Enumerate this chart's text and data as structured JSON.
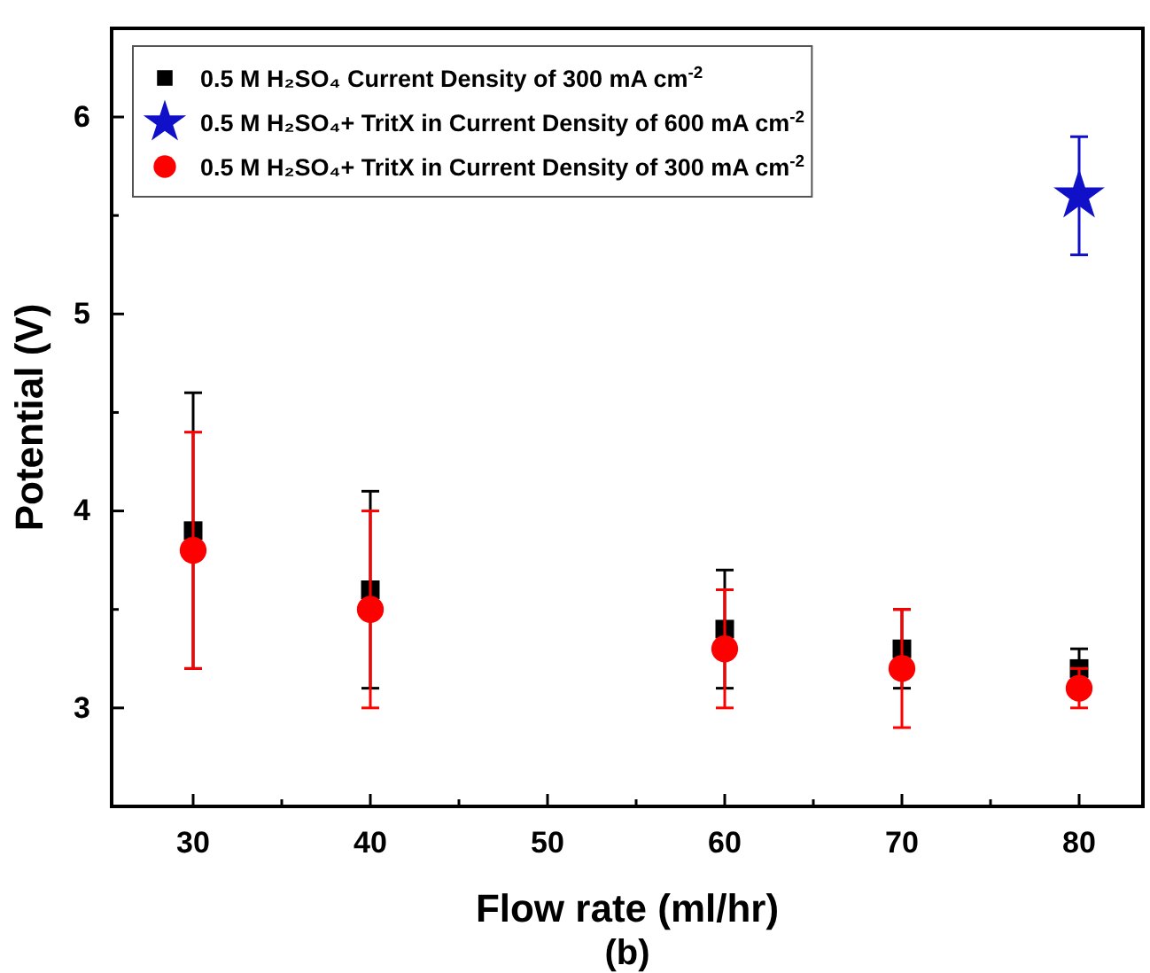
{
  "chart_data": {
    "type": "scatter",
    "xlabel": "Flow rate (ml/hr)",
    "ylabel": "Potential (V)",
    "annotations": [
      "(b)"
    ],
    "xlim": [
      25.4,
      83.6
    ],
    "ylim": [
      2.5,
      6.45
    ],
    "xticks": [
      30,
      {
        "value": 35,
        "label": null
      },
      40,
      {
        "value": 45,
        "label": null
      },
      50,
      {
        "value": 55,
        "label": null
      },
      60,
      {
        "value": 65,
        "label": null
      },
      70,
      {
        "value": 75,
        "label": null
      },
      80
    ],
    "yticks": [
      3,
      {
        "value": 3.5,
        "label": null
      },
      4,
      {
        "value": 4.5,
        "label": null
      },
      5,
      {
        "value": 5.5,
        "label": null
      },
      6
    ],
    "legend": "top left",
    "grid": false,
    "series": [
      {
        "name": "0.5 M H₂SO₄ Current Density of 300 mA cm$^{-2}$",
        "color": "#000000",
        "marker": "square",
        "x": [
          30,
          40,
          60,
          70,
          80
        ],
        "values": [
          3.9,
          3.6,
          3.4,
          3.3,
          3.2
        ],
        "errors": [
          0.7,
          0.5,
          0.3,
          0.2,
          0.1
        ]
      },
      {
        "name": "0.5 M H₂SO₄+ TritX in Current Density of 600 mA cm$^{-2}$",
        "color": "#1010c8",
        "marker": "star",
        "x": [
          80
        ],
        "values": [
          5.6
        ],
        "errors": [
          0.3
        ]
      },
      {
        "name": "0.5 M H₂SO₄+ TritX in Current Density of 300 mA cm$^{-2}$",
        "color": "#ff0000",
        "marker": "circle",
        "x": [
          30,
          40,
          60,
          70,
          80
        ],
        "values": [
          3.8,
          3.5,
          3.3,
          3.2,
          3.1
        ],
        "errors": [
          0.6,
          0.5,
          0.3,
          0.3,
          0.1
        ]
      }
    ]
  }
}
